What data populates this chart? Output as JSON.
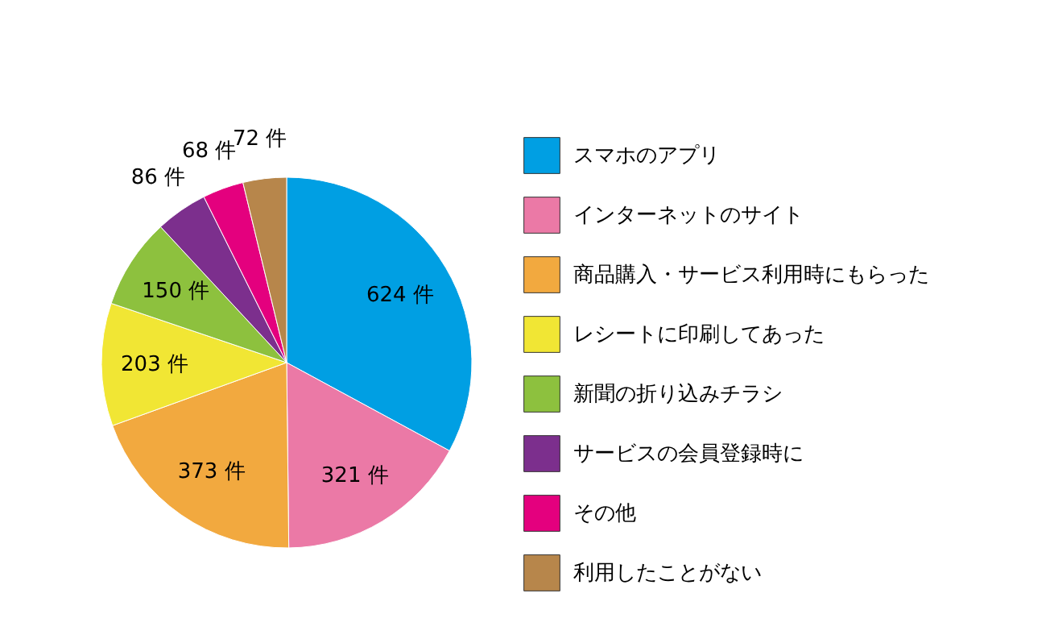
{
  "chart_data": {
    "type": "pie",
    "categories": [
      "スマホのアプリ",
      "インターネットのサイト",
      "商品購入・サービス利用時にもらった",
      "レシートに印刷してあった",
      "新聞の折り込みチラシ",
      "サービスの会員登録時に",
      "その他",
      "利用したことがない"
    ],
    "values": [
      624,
      321,
      373,
      203,
      150,
      86,
      68,
      72
    ],
    "value_labels": [
      "624 件",
      "321 件",
      "373 件",
      "203 件",
      "150 件",
      "86 件",
      "68 件",
      "72 件"
    ],
    "colors": [
      "#009fe3",
      "#eb79a6",
      "#f2a93f",
      "#f1e634",
      "#8dc13e",
      "#7c2f8d",
      "#e4007e",
      "#b7864b"
    ],
    "legend": "right"
  }
}
